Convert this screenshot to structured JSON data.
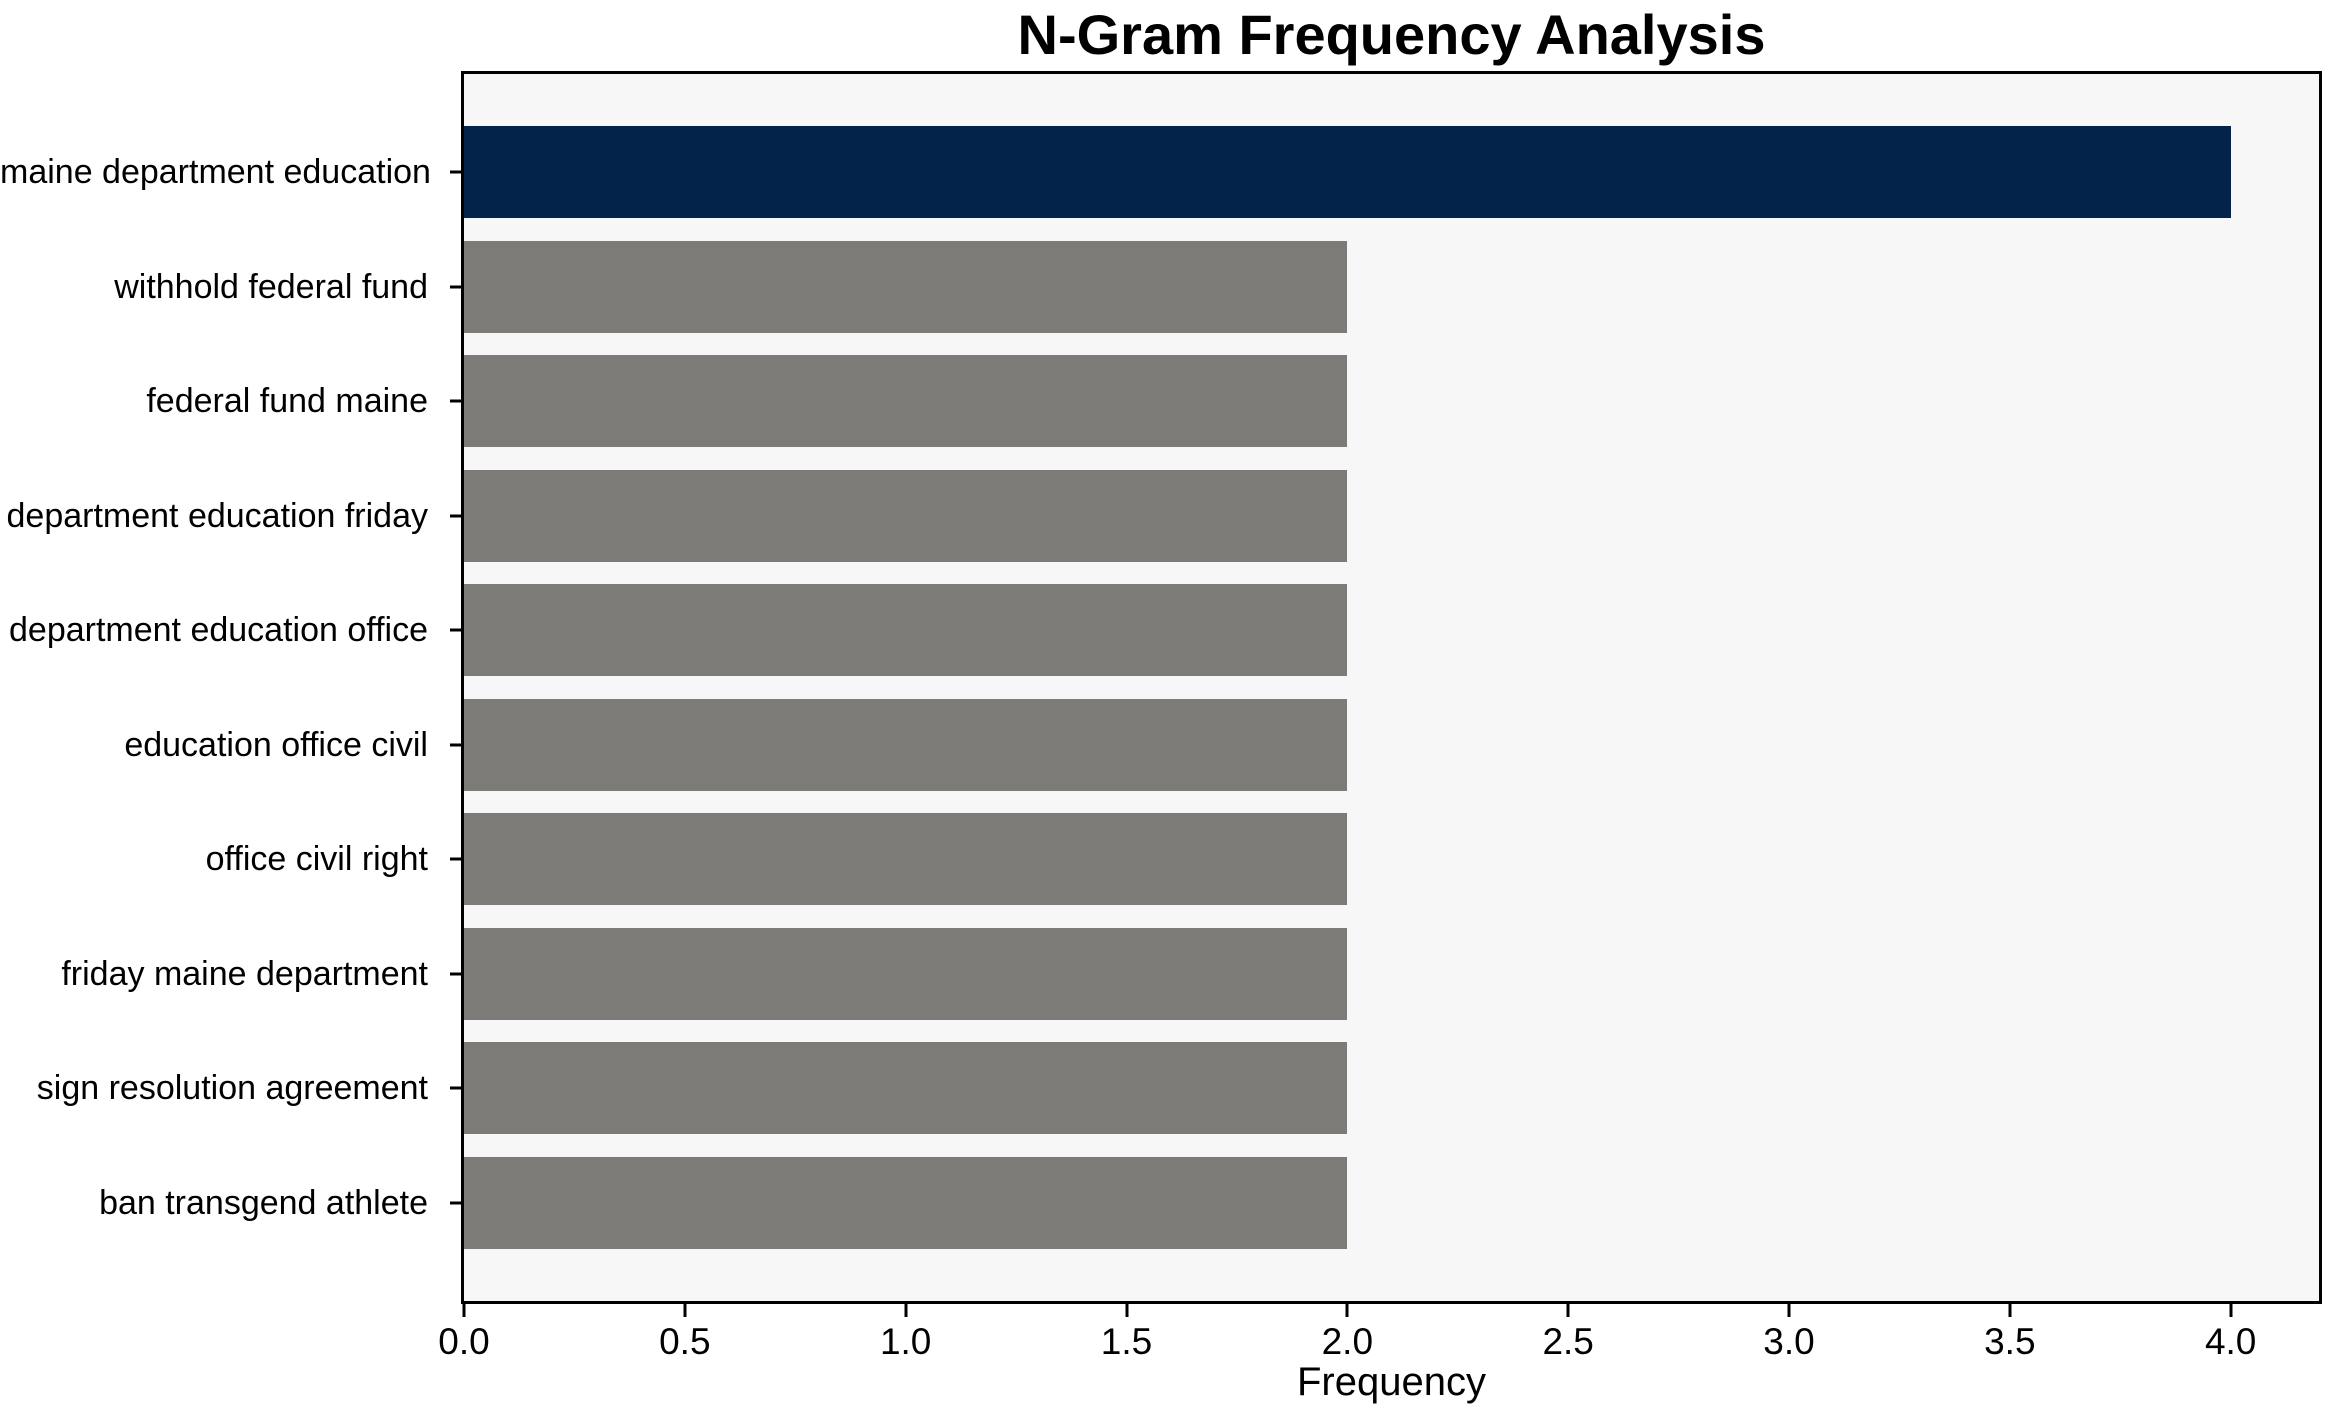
{
  "chart_data": {
    "type": "bar",
    "orientation": "horizontal",
    "title": "N-Gram Frequency Analysis",
    "xlabel": "Frequency",
    "ylabel": "",
    "categories": [
      "maine department education",
      "withhold federal fund",
      "federal fund maine",
      "department education friday",
      "department education office",
      "education office civil",
      "office civil right",
      "friday maine department",
      "sign resolution agreement",
      "ban transgend athlete"
    ],
    "values": [
      4,
      2,
      2,
      2,
      2,
      2,
      2,
      2,
      2,
      2
    ],
    "xlim": [
      0,
      4.2
    ],
    "xticks": [
      0.0,
      0.5,
      1.0,
      1.5,
      2.0,
      2.5,
      3.0,
      3.5,
      4.0
    ],
    "xtick_labels": [
      "0.0",
      "0.5",
      "1.0",
      "1.5",
      "2.0",
      "2.5",
      "3.0",
      "3.5",
      "4.0"
    ],
    "grid": false,
    "legend": null,
    "highlight_index": 0,
    "colors": {
      "highlight_bar": "#03234a",
      "default_bar": "#7c7b78",
      "plot_background": "#f7f7f7",
      "figure_background": "#ffffff",
      "spine": "#000000",
      "text": "#000000"
    }
  }
}
